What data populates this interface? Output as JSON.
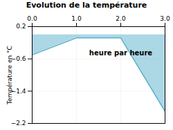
{
  "chart_data": {
    "type": "area",
    "title": "Evolution de la température",
    "ylabel": "Température en °C",
    "x": [
      0,
      1,
      2,
      3
    ],
    "values": [
      -0.5,
      -0.08,
      -0.08,
      -1.9
    ],
    "color": "#5ab0cc",
    "xlim": [
      0,
      3
    ],
    "xticks": [
      0,
      1,
      2,
      3
    ],
    "ylim": [
      -2.2,
      0.2
    ],
    "yticks": [
      0.2,
      -0.6,
      -1.4,
      -2.2
    ],
    "grid": true,
    "annotations": [
      {
        "text": "heure par heure",
        "x": 2.0,
        "y": -0.45
      }
    ]
  }
}
